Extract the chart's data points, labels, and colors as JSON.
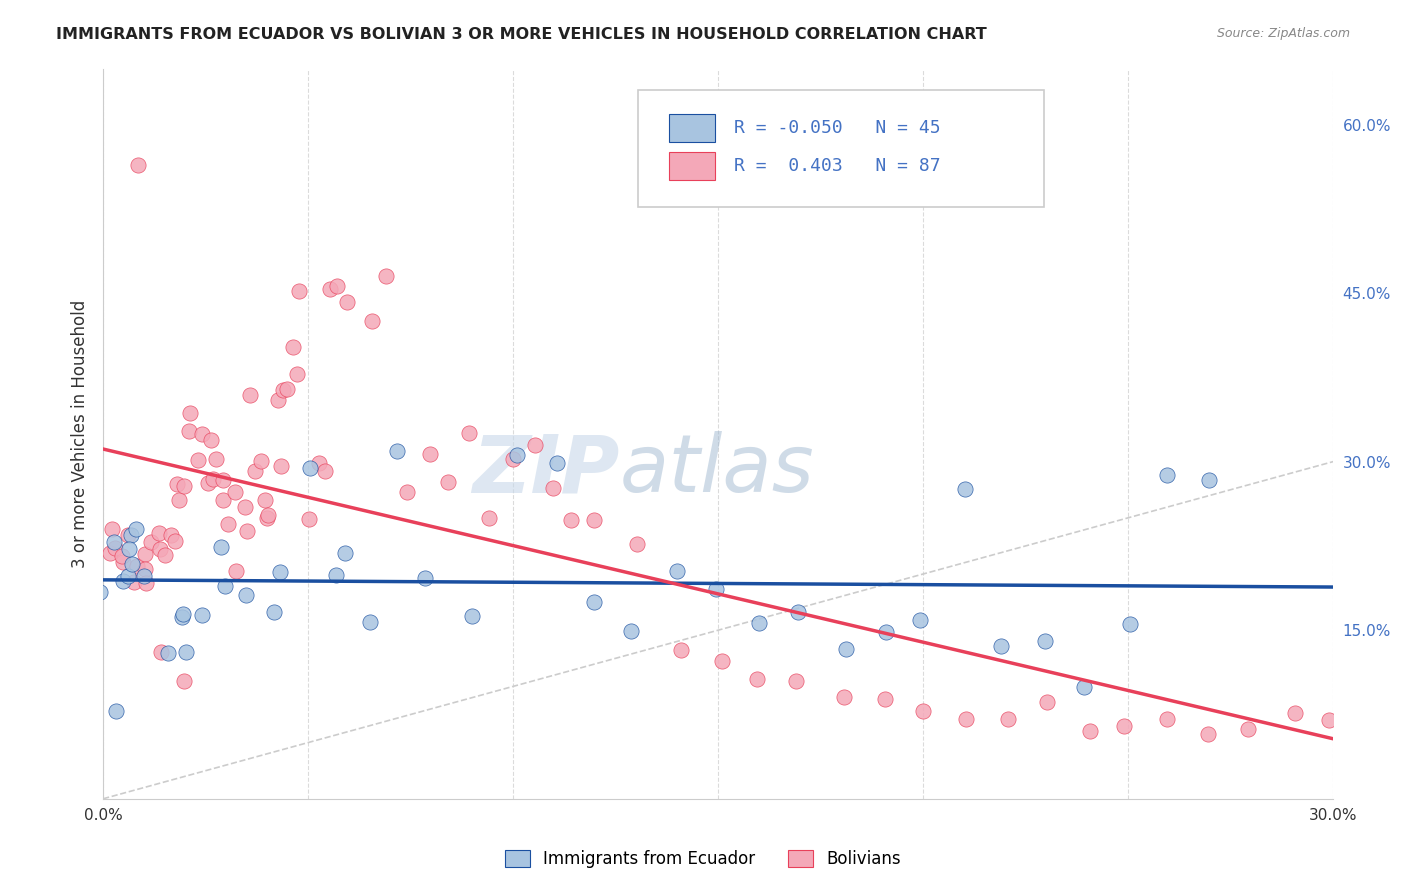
{
  "title": "IMMIGRANTS FROM ECUADOR VS BOLIVIAN 3 OR MORE VEHICLES IN HOUSEHOLD CORRELATION CHART",
  "source": "Source: ZipAtlas.com",
  "ylabel": "3 or more Vehicles in Household",
  "xmin": 0.0,
  "xmax": 0.3,
  "ymin": 0.0,
  "ymax": 0.65,
  "yticks": [
    0.0,
    0.15,
    0.3,
    0.45,
    0.6
  ],
  "xticks": [
    0.0,
    0.05,
    0.1,
    0.15,
    0.2,
    0.25,
    0.3
  ],
  "legend_r_ecuador": "-0.050",
  "legend_n_ecuador": "45",
  "legend_r_bolivian": "0.403",
  "legend_n_bolivian": "87",
  "ecuador_color": "#a8c4e0",
  "bolivian_color": "#f4a8b8",
  "ecuador_line_color": "#1a4fa0",
  "bolivian_line_color": "#e8405a",
  "diagonal_color": "#cccccc",
  "watermark_zip": "ZIP",
  "watermark_atlas": "atlas",
  "ecuador_x": [
    0.001,
    0.002,
    0.003,
    0.004,
    0.005,
    0.006,
    0.007,
    0.008,
    0.009,
    0.01,
    0.015,
    0.018,
    0.02,
    0.022,
    0.025,
    0.028,
    0.03,
    0.035,
    0.04,
    0.045,
    0.05,
    0.055,
    0.06,
    0.065,
    0.07,
    0.08,
    0.09,
    0.1,
    0.11,
    0.12,
    0.13,
    0.14,
    0.15,
    0.16,
    0.17,
    0.18,
    0.19,
    0.2,
    0.21,
    0.22,
    0.23,
    0.24,
    0.25,
    0.26,
    0.27
  ],
  "ecuador_y": [
    0.18,
    0.08,
    0.22,
    0.2,
    0.23,
    0.2,
    0.21,
    0.22,
    0.24,
    0.2,
    0.14,
    0.17,
    0.16,
    0.13,
    0.16,
    0.18,
    0.22,
    0.19,
    0.17,
    0.2,
    0.3,
    0.19,
    0.21,
    0.15,
    0.31,
    0.19,
    0.17,
    0.31,
    0.3,
    0.17,
    0.15,
    0.21,
    0.19,
    0.16,
    0.17,
    0.14,
    0.15,
    0.16,
    0.27,
    0.13,
    0.14,
    0.1,
    0.15,
    0.28,
    0.28
  ],
  "bolivian_x": [
    0.001,
    0.002,
    0.003,
    0.004,
    0.005,
    0.006,
    0.007,
    0.008,
    0.009,
    0.01,
    0.011,
    0.012,
    0.013,
    0.014,
    0.015,
    0.016,
    0.017,
    0.018,
    0.019,
    0.02,
    0.021,
    0.022,
    0.023,
    0.024,
    0.025,
    0.026,
    0.027,
    0.028,
    0.029,
    0.03,
    0.031,
    0.032,
    0.033,
    0.034,
    0.035,
    0.036,
    0.037,
    0.038,
    0.039,
    0.04,
    0.041,
    0.042,
    0.043,
    0.044,
    0.045,
    0.046,
    0.047,
    0.048,
    0.05,
    0.052,
    0.054,
    0.056,
    0.058,
    0.06,
    0.065,
    0.07,
    0.075,
    0.08,
    0.085,
    0.09,
    0.095,
    0.1,
    0.105,
    0.11,
    0.115,
    0.12,
    0.13,
    0.14,
    0.15,
    0.16,
    0.17,
    0.18,
    0.19,
    0.2,
    0.21,
    0.22,
    0.23,
    0.24,
    0.25,
    0.26,
    0.27,
    0.28,
    0.29,
    0.3,
    0.01,
    0.015,
    0.02
  ],
  "bolivian_y": [
    0.22,
    0.23,
    0.24,
    0.21,
    0.22,
    0.23,
    0.2,
    0.57,
    0.21,
    0.22,
    0.21,
    0.22,
    0.23,
    0.23,
    0.22,
    0.24,
    0.23,
    0.27,
    0.28,
    0.27,
    0.33,
    0.34,
    0.3,
    0.32,
    0.29,
    0.28,
    0.31,
    0.3,
    0.27,
    0.28,
    0.24,
    0.27,
    0.21,
    0.25,
    0.35,
    0.24,
    0.29,
    0.31,
    0.24,
    0.26,
    0.25,
    0.35,
    0.37,
    0.3,
    0.37,
    0.4,
    0.46,
    0.37,
    0.25,
    0.3,
    0.3,
    0.45,
    0.45,
    0.44,
    0.43,
    0.46,
    0.28,
    0.3,
    0.28,
    0.33,
    0.25,
    0.3,
    0.32,
    0.27,
    0.25,
    0.24,
    0.22,
    0.14,
    0.12,
    0.11,
    0.1,
    0.09,
    0.09,
    0.07,
    0.08,
    0.07,
    0.09,
    0.07,
    0.06,
    0.07,
    0.05,
    0.06,
    0.08,
    0.06,
    0.2,
    0.14,
    0.1
  ]
}
